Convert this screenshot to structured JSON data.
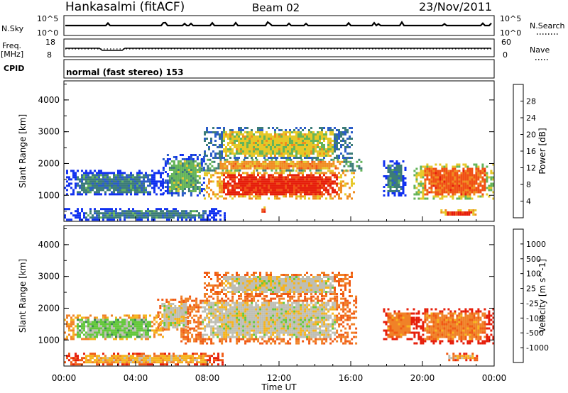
{
  "header": {
    "station": "Hankasalmi (fitACF)",
    "beam": "Beam 02",
    "date": "23/Nov/2011"
  },
  "top_panels": {
    "nsky": {
      "label": "N.Sky",
      "tick_top": "10^5",
      "tick_bottom": "10^0",
      "right_label": "N.Search",
      "right_tick_top": "10^5",
      "right_tick_bottom": "10^0"
    },
    "freq": {
      "label_line1": "Freq.",
      "label_line2": "[MHz]",
      "tick_top": "18",
      "tick_bottom": "8",
      "right_label": "Nave",
      "right_tick_top": "60",
      "right_tick_bottom": "0"
    },
    "cpid": {
      "label": "CPID",
      "text": "normal (fast stereo) 153"
    }
  },
  "chart_data": [
    {
      "type": "heatmap",
      "name": "power",
      "ylabel": "Slant Range [km]",
      "yticks": [
        1000,
        2000,
        3000,
        4000
      ],
      "ylim": [
        180,
        4600
      ],
      "xlim": [
        0,
        24
      ],
      "colorbar": {
        "label": "Power [dB]",
        "ticks": [
          "4",
          "8",
          "12",
          "16",
          "20",
          "24",
          "28"
        ],
        "colors": [
          "#1030f0",
          "#2a5cc8",
          "#3c7c78",
          "#64b45a",
          "#e6c828",
          "#f08c1e",
          "#f05014",
          "#e61e0a"
        ]
      },
      "regions": [
        {
          "t0": 7.8,
          "t1": 16.2,
          "r0": 900,
          "r1": 1800,
          "level": 7
        },
        {
          "t0": 7.5,
          "t1": 16.6,
          "r0": 1800,
          "r1": 2150,
          "level": 5
        },
        {
          "t0": 7.8,
          "t1": 16.0,
          "r0": 2150,
          "r1": 3150,
          "level": 4
        },
        {
          "t0": 5.5,
          "t1": 7.8,
          "r0": 1000,
          "r1": 2300,
          "level": 3
        },
        {
          "t0": 0.0,
          "t1": 5.5,
          "r0": 1000,
          "r1": 1800,
          "level": 2
        },
        {
          "t0": 17.8,
          "t1": 19.0,
          "r0": 1000,
          "r1": 2100,
          "level": 2
        },
        {
          "t0": 19.5,
          "t1": 24.0,
          "r0": 900,
          "r1": 2000,
          "level": 6
        },
        {
          "t0": 21.0,
          "t1": 23.0,
          "r0": 380,
          "r1": 560,
          "level": 7
        },
        {
          "t0": 0.0,
          "t1": 9.0,
          "r0": 250,
          "r1": 600,
          "level": 2
        },
        {
          "t0": 10.9,
          "t1": 11.2,
          "r0": 450,
          "r1": 650,
          "level": 7
        }
      ]
    },
    {
      "type": "heatmap",
      "name": "velocity",
      "ylabel": "Slant Range [km]",
      "yticks": [
        1000,
        2000,
        3000,
        4000
      ],
      "ylim": [
        180,
        4600
      ],
      "xlim": [
        0,
        24
      ],
      "xticks": [
        "00:00",
        "04:00",
        "08:00",
        "12:00",
        "16:00",
        "20:00",
        "00:00"
      ],
      "xlabel": "Time UT",
      "colorbar": {
        "label": "Velocity [m s^-1]",
        "ticks": [
          "1000",
          "500",
          "100",
          "25",
          "-25",
          "-100",
          "-500",
          "-1000"
        ],
        "colors": [
          "#1a36d0",
          "#2a74a8",
          "#3a8c50",
          "#64c83c",
          "#bebeb4",
          "#f5b41e",
          "#f08228",
          "#f05a14",
          "#e61e0a"
        ]
      },
      "regions": [
        {
          "t0": 6.5,
          "t1": 16.3,
          "r0": 900,
          "r1": 2400,
          "level": 4
        },
        {
          "t0": 7.8,
          "t1": 16.0,
          "r0": 2400,
          "r1": 3150,
          "level": 4
        },
        {
          "t0": 5.2,
          "t1": 7.0,
          "r0": 1300,
          "r1": 2300,
          "level": 4
        },
        {
          "t0": 0.0,
          "t1": 5.5,
          "r0": 1000,
          "r1": 1800,
          "level": 3
        },
        {
          "t0": 17.8,
          "t1": 19.5,
          "r0": 1000,
          "r1": 2000,
          "level": 6
        },
        {
          "t0": 19.5,
          "t1": 24.0,
          "r0": 900,
          "r1": 2000,
          "level": 6
        },
        {
          "t0": 21.2,
          "t1": 23.0,
          "r0": 380,
          "r1": 600,
          "level": 5
        },
        {
          "t0": 0.0,
          "t1": 9.0,
          "r0": 250,
          "r1": 600,
          "level": 5
        }
      ]
    }
  ]
}
